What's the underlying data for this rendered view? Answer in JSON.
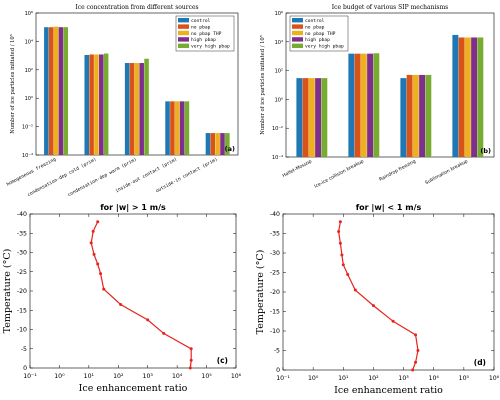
{
  "colors": {
    "control": "#1f77b4",
    "no_pbap": "#d95319",
    "no_pbap_thp": "#edb120",
    "high_pbap": "#7e2f8e",
    "very_high_pbap": "#77ac30",
    "profile": "#e8231c"
  },
  "chart_data": [
    {
      "type": "bar",
      "panel": "(a)",
      "title": "Ice concentration from different sources",
      "ylabel": "Number of ice particles initiated / 10⁵",
      "yscale": "log",
      "ylim": [
        0.0001,
        1000000.0
      ],
      "yticks": [
        "10⁻⁴",
        "10⁻²",
        "10⁰",
        "10²",
        "10⁴",
        "10⁶"
      ],
      "categories": [
        "homogeneous freezing",
        "condensation-dep cold (prim)",
        "condensation-dep warm (prim)",
        "inside-out contact (prim)",
        "outside-in contact (prim)"
      ],
      "legend_position": "top-right",
      "series": [
        {
          "name": "control",
          "values": [
            100000.0,
            1100.0,
            300.0,
            0.6,
            0.0035
          ]
        },
        {
          "name": "no pbap",
          "values": [
            100000.0,
            1200.0,
            300.0,
            0.6,
            0.0035
          ]
        },
        {
          "name": "no pbap THP",
          "values": [
            110000.0,
            1200.0,
            300.0,
            0.6,
            0.0035
          ]
        },
        {
          "name": "high pbap",
          "values": [
            100000.0,
            1200.0,
            300.0,
            0.6,
            0.0035
          ]
        },
        {
          "name": "very high pbap",
          "values": [
            100000.0,
            1400.0,
            600.0,
            0.6,
            0.0035
          ]
        }
      ]
    },
    {
      "type": "bar",
      "panel": "(b)",
      "title": "Ice budget of various SIP mechanisms",
      "ylabel": "Number of ice particles initiated / 10⁵",
      "yscale": "log",
      "ylim": [
        0.0001,
        1000000.0
      ],
      "yticks": [
        "10⁻⁴",
        "10⁻²",
        "10⁰",
        "10²",
        "10⁴",
        "10⁶"
      ],
      "categories": [
        "Hallet-Mossop",
        "Ice-ice collision breakup",
        "Raindrop freezing",
        "Sublimation breakup"
      ],
      "legend_position": "top-left",
      "series": [
        {
          "name": "control",
          "values": [
            30,
            1500,
            30,
            30000
          ]
        },
        {
          "name": "no pbap",
          "values": [
            30,
            1500,
            50,
            20000
          ]
        },
        {
          "name": "no pbap THP",
          "values": [
            30,
            1500,
            50,
            20000
          ]
        },
        {
          "name": "high pbap",
          "values": [
            30,
            1500,
            50,
            20000
          ]
        },
        {
          "name": "very high pbap",
          "values": [
            30,
            1600,
            50,
            20000
          ]
        }
      ]
    },
    {
      "type": "line",
      "panel": "(c)",
      "title": "for |w| > 1 m/s",
      "xlabel": "Ice enhancement ratio",
      "ylabel": "Temperature (°C)",
      "xscale": "log",
      "xlim": [
        0.1,
        1000000
      ],
      "ylim": [
        0,
        -40
      ],
      "xticks": [
        "10⁻¹",
        "10⁰",
        "10¹",
        "10²",
        "10³",
        "10⁴",
        "10⁵",
        "10⁶"
      ],
      "yticks": [
        "0",
        "-5",
        "-10",
        "-15",
        "-20",
        "-25",
        "-30",
        "-35",
        "-40"
      ],
      "x": [
        28000,
        30000,
        30000,
        3500,
        1000,
        120,
        32,
        25,
        20,
        15,
        12,
        14,
        20
      ],
      "y": [
        0,
        -2,
        -5,
        -9,
        -12.5,
        -16.5,
        -20.5,
        -24.5,
        -27,
        -29.5,
        -32.5,
        -35.5,
        -38
      ]
    },
    {
      "type": "line",
      "panel": "(d)",
      "title": "for |w| < 1 m/s",
      "xlabel": "Ice enhancement ratio",
      "ylabel": "Temperature (°C)",
      "xscale": "log",
      "xlim": [
        0.1,
        1000000
      ],
      "ylim": [
        0,
        -40
      ],
      "xticks": [
        "10⁻¹",
        "10⁰",
        "10¹",
        "10²",
        "10³",
        "10⁴",
        "10⁵",
        "10⁶"
      ],
      "yticks": [
        "0",
        "-5",
        "-10",
        "-15",
        "-20",
        "-25",
        "-30",
        "-35",
        "-40"
      ],
      "x": [
        2000,
        2500,
        3000,
        2500,
        450,
        100,
        25,
        14,
        10,
        9,
        8,
        7,
        8
      ],
      "y": [
        0,
        -2,
        -5,
        -9,
        -12.5,
        -16.5,
        -20.5,
        -24.5,
        -27,
        -29.5,
        -32.5,
        -35.5,
        -38
      ]
    }
  ]
}
